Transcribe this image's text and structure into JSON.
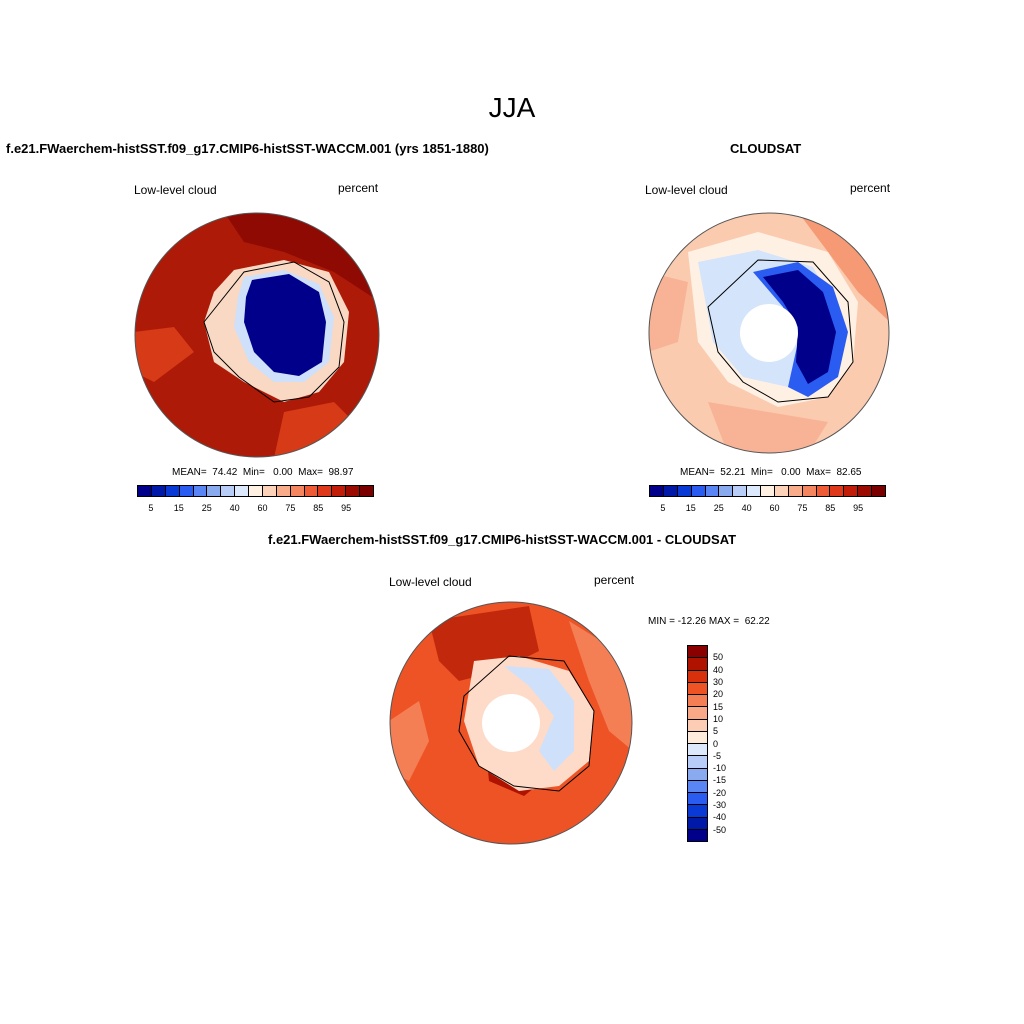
{
  "season": "JJA",
  "panels": {
    "model": {
      "title": "f.e21.FWaerchem-histSST.f09_g17.CMIP6-histSST-WACCM.001 (yrs 1851-1880)",
      "variable": "Low-level cloud",
      "units": "percent",
      "stats": "MEAN=  74.42  Min=   0.00  Max=  98.97"
    },
    "obs": {
      "title": "CLOUDSAT",
      "variable": "Low-level cloud",
      "units": "percent",
      "stats": "MEAN=  52.21  Min=   0.00  Max=  82.65"
    },
    "diff": {
      "title": "f.e21.FWaerchem-histSST.f09_g17.CMIP6-histSST-WACCM.001 - CLOUDSAT",
      "variable": "Low-level cloud",
      "units": "percent",
      "stats": "MIN = -12.26 MAX =  62.22"
    }
  },
  "colorbar_abs": {
    "colors": [
      "#00008a",
      "#0019a8",
      "#0a3ad6",
      "#2a5cf2",
      "#5a86f5",
      "#8aaaf0",
      "#b8cdf8",
      "#dce8fc",
      "#fff0e4",
      "#fcd2b8",
      "#f9ac8a",
      "#f5855e",
      "#ee5b35",
      "#e0381a",
      "#c21d08",
      "#9c0b02",
      "#7a0000"
    ],
    "tick_labels": [
      "5",
      "15",
      "25",
      "40",
      "60",
      "75",
      "85",
      "95"
    ]
  },
  "colorbar_diff": {
    "colors": [
      "#8a0000",
      "#b01200",
      "#d8300c",
      "#ee5326",
      "#f57f55",
      "#f9a988",
      "#fccdb4",
      "#fdebdc",
      "#dce8fc",
      "#b8cdf8",
      "#8aaaf0",
      "#5a86f5",
      "#2a5cf2",
      "#0a3ad6",
      "#0019a8",
      "#00008a"
    ],
    "tick_labels": [
      "50",
      "40",
      "30",
      "20",
      "15",
      "10",
      "5",
      "0",
      "-5",
      "-10",
      "-15",
      "-20",
      "-30",
      "-40",
      "-50"
    ]
  }
}
